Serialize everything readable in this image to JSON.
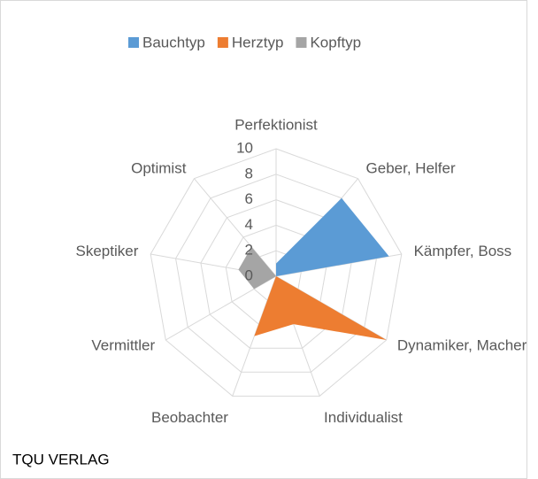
{
  "chart_data": {
    "type": "radar",
    "categories": [
      "Perfektionist",
      "Geber, Helfer",
      "Kämpfer, Boss",
      "Dynamiker, Macher",
      "Individualist",
      "Beobachter",
      "Vermittler",
      "Skeptiker",
      "Optimist"
    ],
    "series": [
      {
        "name": "Bauchtyp",
        "color": "#5b9bd5",
        "values": [
          1,
          8,
          9,
          0,
          0,
          0,
          0,
          0,
          0
        ]
      },
      {
        "name": "Herztyp",
        "color": "#ed7d31",
        "values": [
          0,
          0,
          0,
          10,
          4,
          5,
          0,
          0,
          0
        ]
      },
      {
        "name": "Kopftyp",
        "color": "#a5a5a5",
        "values": [
          0,
          0,
          0,
          0,
          0,
          0,
          2,
          3,
          3
        ]
      }
    ],
    "ylim": [
      0,
      10
    ],
    "yticks": [
      0,
      2,
      4,
      6,
      8,
      10
    ],
    "grid": true,
    "legend": "top",
    "footer": "TQU VERLAG"
  }
}
